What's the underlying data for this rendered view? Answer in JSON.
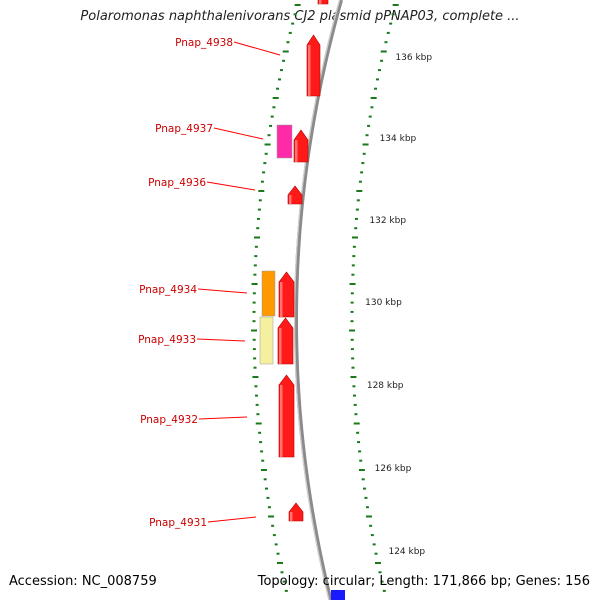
{
  "title": "Polaromonas naphthalenivorans CJ2 plasmid pPNAP03, complete ...",
  "footer": {
    "accession": "Accession: NC_008759",
    "summary": "Topology: circular; Length: 171,866 bp; Genes: 156"
  },
  "colors": {
    "gene_forward": "#ff1a1a",
    "label": "#cc0000",
    "backbone": "#8a8a8a",
    "tick": "#1a7a1a",
    "orange_gene": "#ff9900",
    "yellow_gene": "#f5f0a0",
    "magenta_gene": "#ff2aa8",
    "blue_gene": "#1a1aff"
  },
  "ruler": [
    {
      "label": "136 kbp"
    },
    {
      "label": "134 kbp"
    },
    {
      "label": "132 kbp"
    },
    {
      "label": "130 kbp"
    },
    {
      "label": "128 kbp"
    },
    {
      "label": "126 kbp"
    },
    {
      "label": "124 kbp"
    }
  ],
  "genes": [
    {
      "label": "Pnap_4938"
    },
    {
      "label": "Pnap_4937"
    },
    {
      "label": "Pnap_4936"
    },
    {
      "label": "Pnap_4934"
    },
    {
      "label": "Pnap_4933"
    },
    {
      "label": "Pnap_4932"
    },
    {
      "label": "Pnap_4931"
    }
  ]
}
